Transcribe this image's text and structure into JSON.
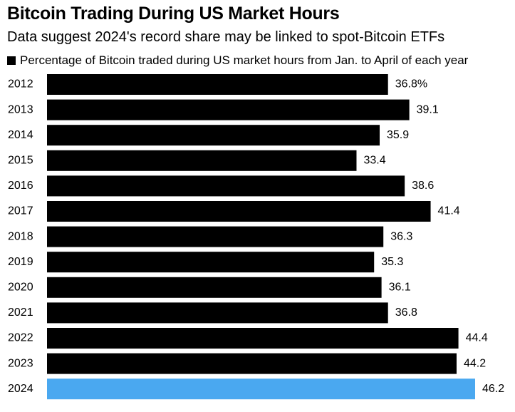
{
  "title": "Bitcoin Trading During US Market Hours",
  "subtitle": "Data suggest 2024's record share may be linked to spot-Bitcoin ETFs",
  "chart_data": {
    "type": "bar",
    "orientation": "horizontal",
    "title": "Bitcoin Trading During US Market Hours",
    "subtitle": "Data suggest 2024's record share may be linked to spot-Bitcoin ETFs",
    "legend": "top-left",
    "grid": false,
    "categories": [
      "2012",
      "2013",
      "2014",
      "2015",
      "2016",
      "2017",
      "2018",
      "2019",
      "2020",
      "2021",
      "2022",
      "2023",
      "2024"
    ],
    "series": [
      {
        "name": "Percentage of Bitcoin traded during US market hours from Jan. to April of each year",
        "values": [
          36.8,
          39.1,
          35.9,
          33.4,
          38.6,
          41.4,
          36.3,
          35.3,
          36.1,
          36.8,
          44.4,
          44.2,
          46.2
        ]
      }
    ],
    "value_labels": [
      "36.8%",
      "39.1",
      "35.9",
      "33.4",
      "38.6",
      "41.4",
      "36.3",
      "35.3",
      "36.1",
      "36.8",
      "44.4",
      "44.2",
      "46.2"
    ],
    "xlim": [
      0,
      46.2
    ],
    "colors": {
      "default": "#000000",
      "highlight": "#4aa8f0"
    },
    "highlight_category": "2024"
  }
}
